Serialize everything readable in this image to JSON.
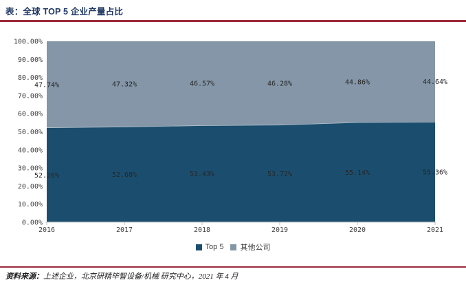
{
  "page": {
    "title": "表：全球 TOP 5 企业产量占比",
    "source_prefix": "资料来源：",
    "source_text": "上述企业，北京研精毕智设备/机械 研究中心，2021 年 4 月"
  },
  "colors": {
    "accent_red": "#9E2A3B",
    "title_navy": "#1F3864",
    "axis_text": "#404040",
    "data_label_text": "#262626",
    "axis_line": "#D9D9D9",
    "tick_mark": "#BFBFBF",
    "series_boundary": "#B9C4CE"
  },
  "chart_data": {
    "type": "area",
    "stacked_percent": true,
    "title": "全球 TOP 5 企业产量占比",
    "categories": [
      "2016",
      "2017",
      "2018",
      "2019",
      "2020",
      "2021"
    ],
    "series": [
      {
        "name": "Top 5",
        "color": "#1B4E6E",
        "values": [
          52.26,
          52.68,
          53.43,
          53.72,
          55.14,
          55.36
        ],
        "labels": [
          "52.26%",
          "52.68%",
          "53.43%",
          "53.72%",
          "55.14%",
          "55.36%"
        ]
      },
      {
        "name": "其他公司",
        "color": "#8496A7",
        "values": [
          47.74,
          47.32,
          46.57,
          46.28,
          44.86,
          44.64
        ],
        "labels": [
          "47.74%",
          "47.32%",
          "46.57%",
          "46.28%",
          "44.86%",
          "44.64%"
        ]
      }
    ],
    "y_axis": {
      "min": 0,
      "max": 100,
      "step": 10,
      "tick_labels": [
        "0.00%",
        "10.00%",
        "20.00%",
        "30.00%",
        "40.00%",
        "50.00%",
        "60.00%",
        "70.00%",
        "80.00%",
        "90.00%",
        "100.00%"
      ]
    },
    "x_axis": {
      "tick_labels": [
        "2016",
        "2017",
        "2018",
        "2019",
        "2020",
        "2021"
      ]
    },
    "legend": {
      "position": "bottom",
      "items": [
        "Top 5",
        "其他公司"
      ]
    },
    "grid": false,
    "data_labels_visible": true
  }
}
